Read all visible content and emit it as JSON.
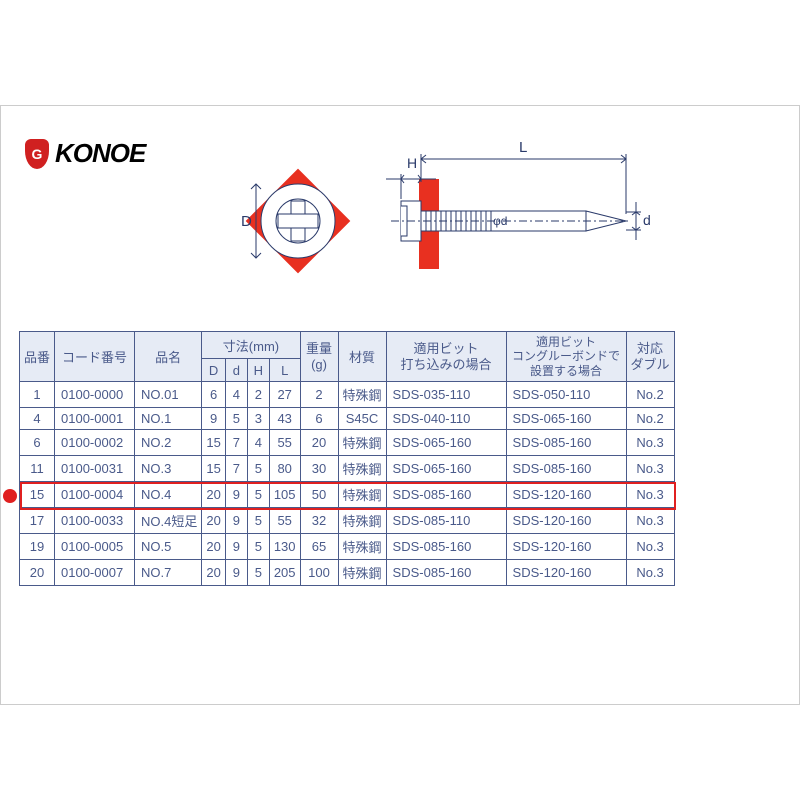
{
  "brand": {
    "name": "KONOE",
    "mark": "G"
  },
  "diagram": {
    "labels": {
      "L": "L",
      "H": "H",
      "D": "D",
      "d": "d",
      "phi_d": "φd"
    },
    "colors": {
      "accent": "#e83020",
      "line": "#2a3a6a",
      "fill": "#ffffff"
    }
  },
  "table": {
    "header": {
      "hinban": "品番",
      "code": "コード番号",
      "hinmei": "品名",
      "dim_group": "寸法(mm)",
      "dim_D": "D",
      "dim_d": "d",
      "dim_H": "H",
      "dim_L": "L",
      "weight": "重量\n(g)",
      "material": "材質",
      "bit1": "適用ビット\n打ち込みの場合",
      "bit2": "適用ビット\nコングルーボンドで\n設置する場合",
      "double": "対応\nダブル"
    },
    "rows": [
      {
        "hinban": "1",
        "code": "0100-0000",
        "hinmei": "NO.01",
        "D": "6",
        "d": "4",
        "H": "2",
        "L": "27",
        "w": "2",
        "mat": "特殊鋼",
        "b1": "SDS-035-110",
        "b2": "SDS-050-110",
        "dbl": "No.2"
      },
      {
        "hinban": "4",
        "code": "0100-0001",
        "hinmei": "NO.1",
        "D": "9",
        "d": "5",
        "H": "3",
        "L": "43",
        "w": "6",
        "mat": "S45C",
        "b1": "SDS-040-110",
        "b2": "SDS-065-160",
        "dbl": "No.2"
      },
      {
        "hinban": "6",
        "code": "0100-0002",
        "hinmei": "NO.2",
        "D": "15",
        "d": "7",
        "H": "4",
        "L": "55",
        "w": "20",
        "mat": "特殊鋼",
        "b1": "SDS-065-160",
        "b2": "SDS-085-160",
        "dbl": "No.3"
      },
      {
        "hinban": "11",
        "code": "0100-0031",
        "hinmei": "NO.3",
        "D": "15",
        "d": "7",
        "H": "5",
        "L": "80",
        "w": "30",
        "mat": "特殊鋼",
        "b1": "SDS-065-160",
        "b2": "SDS-085-160",
        "dbl": "No.3"
      },
      {
        "hinban": "15",
        "code": "0100-0004",
        "hinmei": "NO.4",
        "D": "20",
        "d": "9",
        "H": "5",
        "L": "105",
        "w": "50",
        "mat": "特殊鋼",
        "b1": "SDS-085-160",
        "b2": "SDS-120-160",
        "dbl": "No.3",
        "highlight": true
      },
      {
        "hinban": "17",
        "code": "0100-0033",
        "hinmei": "NO.4短足",
        "D": "20",
        "d": "9",
        "H": "5",
        "L": "55",
        "w": "32",
        "mat": "特殊鋼",
        "b1": "SDS-085-110",
        "b2": "SDS-120-160",
        "dbl": "No.3"
      },
      {
        "hinban": "19",
        "code": "0100-0005",
        "hinmei": "NO.5",
        "D": "20",
        "d": "9",
        "H": "5",
        "L": "130",
        "w": "65",
        "mat": "特殊鋼",
        "b1": "SDS-085-160",
        "b2": "SDS-120-160",
        "dbl": "No.3"
      },
      {
        "hinban": "20",
        "code": "0100-0007",
        "hinmei": "NO.7",
        "D": "20",
        "d": "9",
        "H": "5",
        "L": "205",
        "w": "100",
        "mat": "特殊鋼",
        "b1": "SDS-085-160",
        "b2": "SDS-120-160",
        "dbl": "No.3"
      }
    ],
    "highlight_color": "#e02020"
  }
}
